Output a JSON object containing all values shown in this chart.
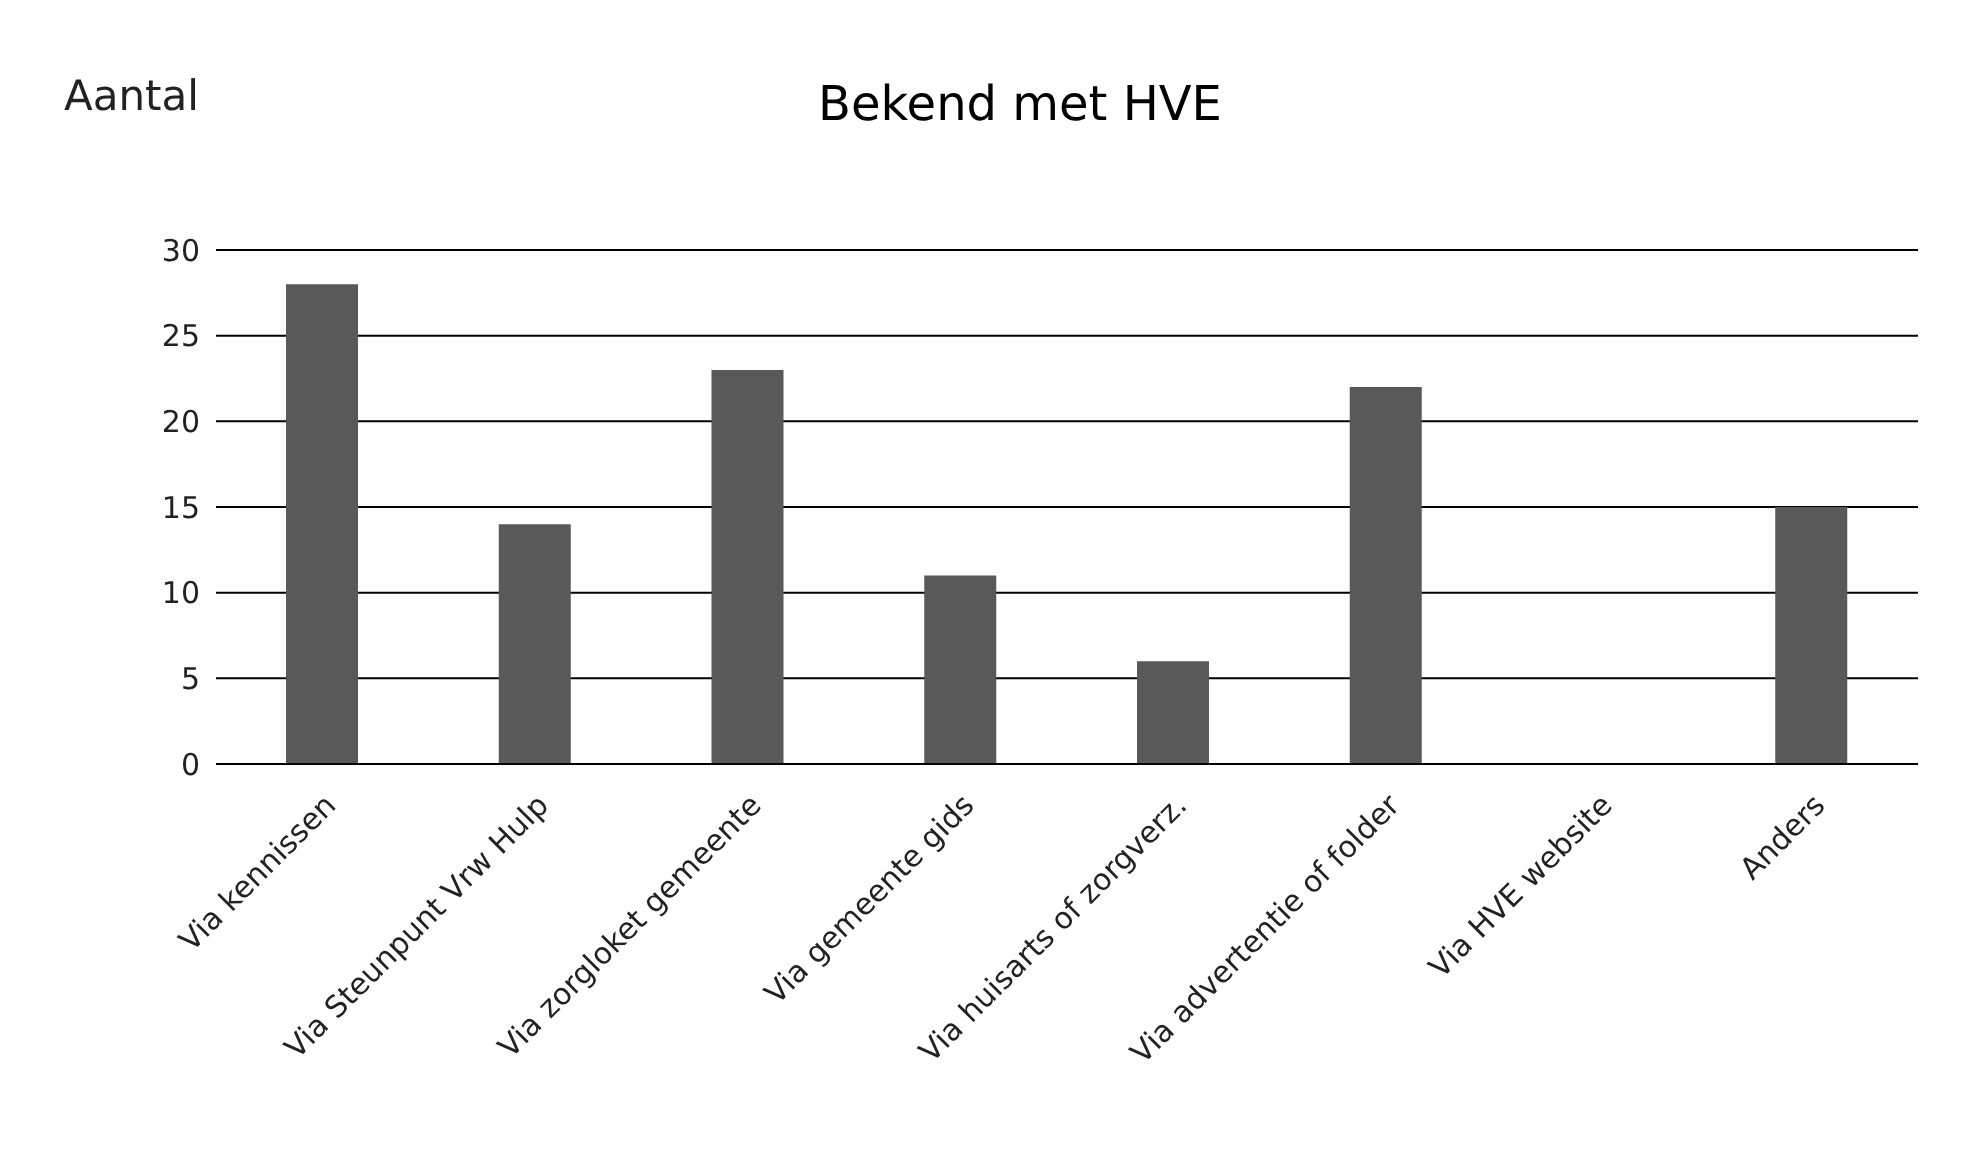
{
  "chart_data": {
    "type": "bar",
    "title": "Bekend met HVE",
    "ylabel": "Aantal",
    "categories": [
      "Via kennissen",
      "Via Steunpunt Vrw Hulp",
      "Via zorgloket gemeente",
      "Via gemeente gids",
      "Via huisarts of zorgverz.",
      "Via advertentie of folder",
      "Via HVE website",
      "Anders"
    ],
    "values": [
      28,
      14,
      23,
      11,
      6,
      22,
      0,
      15
    ],
    "color": "#595959",
    "ylim": [
      0,
      30
    ],
    "yticks": [
      0,
      5,
      10,
      15,
      20,
      25,
      30
    ],
    "grid": "y"
  }
}
